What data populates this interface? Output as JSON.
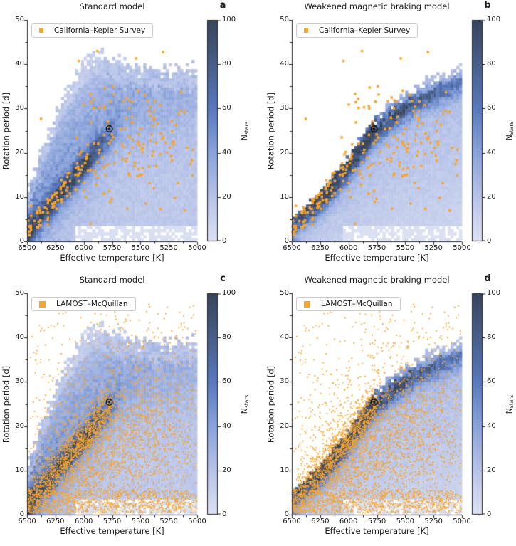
{
  "panels": [
    {
      "letter": "a",
      "title": "Standard model",
      "legend_label": "California–Kepler Survey",
      "dataset": "cks",
      "model": "std"
    },
    {
      "letter": "b",
      "title": "Weakened magnetic braking model",
      "legend_label": "California–Kepler Survey",
      "dataset": "cks",
      "model": "wmb"
    },
    {
      "letter": "c",
      "title": "Standard model",
      "legend_label": "LAMOST–McQuillan",
      "dataset": "lamost",
      "model": "std"
    },
    {
      "letter": "d",
      "title": "Weakened magnetic braking model",
      "legend_label": "LAMOST–McQuillan",
      "dataset": "lamost",
      "model": "wmb"
    }
  ],
  "axes": {
    "xlabel": "Effective temperature [K]",
    "ylabel": "Rotation period [d]",
    "xtick_labels": [
      "6500",
      "6250",
      "6000",
      "5750",
      "5500",
      "5250",
      "5000"
    ],
    "ytick_labels": [
      "0",
      "10",
      "20",
      "30",
      "40",
      "50"
    ],
    "x_range": [
      6500,
      5000
    ],
    "y_range": [
      0,
      50
    ]
  },
  "colorbar": {
    "label_main": "N",
    "label_sub": "stars",
    "tick_labels": [
      "0",
      "20",
      "40",
      "60",
      "80",
      "100"
    ],
    "range": [
      0,
      100
    ]
  },
  "sun_marker": {
    "teff": 5775,
    "period_d": 25.4
  },
  "colors": {
    "orange": "#f9a42a",
    "spine": "#262626",
    "text": "#1c1c1c",
    "legend_border": "#cccccc",
    "cmap_stops": [
      [
        0,
        "#dce2f3"
      ],
      [
        0.2,
        "#b7c3e8"
      ],
      [
        0.4,
        "#8aa3da"
      ],
      [
        0.6,
        "#5979bd"
      ],
      [
        0.8,
        "#495e88"
      ],
      [
        1,
        "#38455e"
      ]
    ]
  },
  "chart_data": [
    {
      "panel": "a",
      "type": "heatmap",
      "title": "Standard model",
      "x": {
        "label": "Effective temperature [K]",
        "range": [
          6500,
          5000
        ],
        "ticks": [
          6500,
          6250,
          6000,
          5750,
          5500,
          5250,
          5000
        ],
        "reversed": true
      },
      "y": {
        "label": "Rotation period [d]",
        "range": [
          0,
          50
        ],
        "ticks": [
          0,
          10,
          20,
          30,
          40,
          50
        ]
      },
      "colorbar": {
        "label": "Nstars",
        "range": [
          0,
          100
        ],
        "ticks": [
          0,
          20,
          40,
          60,
          80,
          100
        ]
      },
      "model": "std",
      "overlay": {
        "survey": "California–Kepler Survey",
        "marker": "orange square",
        "approx_points": 240
      },
      "sun": {
        "teff": 5775,
        "period_d": 25.4
      },
      "ridge_curve_T_P": [
        [
          6500,
          2
        ],
        [
          6375,
          7
        ],
        [
          6250,
          10
        ],
        [
          6125,
          13.5
        ],
        [
          6000,
          17
        ],
        [
          5875,
          20.5
        ],
        [
          5775,
          23
        ]
      ],
      "envelope_curve_T_P": [
        [
          6500,
          11
        ],
        [
          6380,
          20
        ],
        [
          6185,
          33
        ],
        [
          5960,
          42
        ],
        [
          5855,
          43
        ],
        [
          5750,
          41
        ],
        [
          5525,
          40
        ],
        [
          5300,
          39.5
        ],
        [
          5000,
          39.5
        ]
      ]
    },
    {
      "panel": "b",
      "type": "heatmap",
      "title": "Weakened magnetic braking model",
      "x": {
        "label": "Effective temperature [K]",
        "range": [
          6500,
          5000
        ],
        "ticks": [
          6500,
          6250,
          6000,
          5750,
          5500,
          5250,
          5000
        ],
        "reversed": true
      },
      "y": {
        "label": "Rotation period [d]",
        "range": [
          0,
          50
        ],
        "ticks": [
          0,
          10,
          20,
          30,
          40,
          50
        ]
      },
      "colorbar": {
        "label": "Nstars",
        "range": [
          0,
          100
        ],
        "ticks": [
          0,
          20,
          40,
          60,
          80,
          100
        ]
      },
      "model": "wmb",
      "overlay": {
        "survey": "California–Kepler Survey",
        "marker": "orange square",
        "approx_points": 240
      },
      "sun": {
        "teff": 5775,
        "period_d": 25.4
      },
      "ridge_curve_T_P": [
        [
          6500,
          4
        ],
        [
          6250,
          9.5
        ],
        [
          6000,
          17
        ],
        [
          5780,
          25
        ],
        [
          5600,
          29
        ],
        [
          5375,
          32.5
        ],
        [
          5000,
          36
        ]
      ],
      "envelope_curve_T_P": [
        [
          6500,
          5.5
        ],
        [
          6250,
          11
        ],
        [
          6000,
          18.5
        ],
        [
          5780,
          27
        ],
        [
          5600,
          31.5
        ],
        [
          5375,
          35.5
        ],
        [
          5000,
          40
        ]
      ]
    },
    {
      "panel": "c",
      "type": "heatmap",
      "title": "Standard model",
      "x": {
        "label": "Effective temperature [K]",
        "range": [
          6500,
          5000
        ],
        "ticks": [
          6500,
          6250,
          6000,
          5750,
          5500,
          5250,
          5000
        ],
        "reversed": true
      },
      "y": {
        "label": "Rotation period [d]",
        "range": [
          0,
          50
        ],
        "ticks": [
          0,
          10,
          20,
          30,
          40,
          50
        ]
      },
      "colorbar": {
        "label": "Nstars",
        "range": [
          0,
          100
        ],
        "ticks": [
          0,
          20,
          40,
          60,
          80,
          100
        ]
      },
      "model": "std",
      "overlay": {
        "survey": "LAMOST–McQuillan",
        "marker": "orange dot",
        "approx_points": 3800
      },
      "sun": {
        "teff": 5775,
        "period_d": 25.4
      },
      "ridge_curve_T_P": [
        [
          6500,
          2
        ],
        [
          6375,
          7
        ],
        [
          6250,
          10
        ],
        [
          6125,
          13.5
        ],
        [
          6000,
          17
        ],
        [
          5875,
          20.5
        ],
        [
          5775,
          23
        ]
      ],
      "envelope_curve_T_P": [
        [
          6500,
          11
        ],
        [
          6380,
          20
        ],
        [
          6185,
          33
        ],
        [
          5960,
          42
        ],
        [
          5855,
          43
        ],
        [
          5750,
          41
        ],
        [
          5525,
          40
        ],
        [
          5300,
          39.5
        ],
        [
          5000,
          39.5
        ]
      ]
    },
    {
      "panel": "d",
      "type": "heatmap",
      "title": "Weakened magnetic braking model",
      "x": {
        "label": "Effective temperature [K]",
        "range": [
          6500,
          5000
        ],
        "ticks": [
          6500,
          6250,
          6000,
          5750,
          5500,
          5250,
          5000
        ],
        "reversed": true
      },
      "y": {
        "label": "Rotation period [d]",
        "range": [
          0,
          50
        ],
        "ticks": [
          0,
          10,
          20,
          30,
          40,
          50
        ]
      },
      "colorbar": {
        "label": "Nstars",
        "range": [
          0,
          100
        ],
        "ticks": [
          0,
          20,
          40,
          60,
          80,
          100
        ]
      },
      "model": "wmb",
      "overlay": {
        "survey": "LAMOST–McQuillan",
        "marker": "orange dot",
        "approx_points": 3800
      },
      "sun": {
        "teff": 5775,
        "period_d": 25.4
      },
      "ridge_curve_T_P": [
        [
          6500,
          4
        ],
        [
          6250,
          9.5
        ],
        [
          6000,
          17
        ],
        [
          5780,
          25
        ],
        [
          5600,
          29
        ],
        [
          5375,
          32.5
        ],
        [
          5000,
          36
        ]
      ],
      "envelope_curve_T_P": [
        [
          6500,
          5.5
        ],
        [
          6250,
          11
        ],
        [
          6000,
          18.5
        ],
        [
          5780,
          27
        ],
        [
          5600,
          31.5
        ],
        [
          5375,
          35.5
        ],
        [
          5000,
          40
        ]
      ]
    }
  ],
  "render": {
    "grid": {
      "cols": 60,
      "rows": 72
    },
    "models": {
      "std": {
        "seed": 3,
        "base": 17,
        "cloudAmp": 26,
        "cloudFade": 0.45,
        "cloudWidth": 8.5,
        "cloudOffset": 5,
        "ridgeAmp": 58,
        "ridgeWidth": 2.1,
        "fadeStart": 0.38,
        "fadeEnd": 0.58,
        "cornerAmp": 30,
        "cornerT": 0.05,
        "cornerP": 5,
        "topZone": 5,
        "topTaper": 0.55,
        "gapP": 3.5,
        "gapT": 0.28,
        "gapFactor": 0.12,
        "env": [
          [
            0,
            11
          ],
          [
            0.08,
            20
          ],
          [
            0.21,
            33
          ],
          [
            0.36,
            42
          ],
          [
            0.43,
            43
          ],
          [
            0.5,
            41
          ],
          [
            0.65,
            40
          ],
          [
            0.8,
            39.5
          ],
          [
            1,
            39.5
          ]
        ]
      },
      "wmb": {
        "seed": 9,
        "base": 13,
        "baseSlope": 17,
        "tilt": 5,
        "ridgeAmp": 78,
        "ridgeWidth": 2.3,
        "fade": [
          [
            0,
            0.55
          ],
          [
            0.15,
            1
          ],
          [
            0.55,
            1
          ],
          [
            1,
            0.42
          ]
        ],
        "cornerAmp": 22,
        "cornerT": 0.05,
        "cornerP": 4,
        "envLift": [
          1.2,
          2.9
        ],
        "gapP": 3.5,
        "gapT": 0.3,
        "gapFactor": 0.12,
        "ridge": [
          [
            0,
            4
          ],
          [
            0.167,
            9.5
          ],
          [
            0.333,
            17
          ],
          [
            0.48,
            25
          ],
          [
            0.6,
            29
          ],
          [
            0.75,
            32.5
          ],
          [
            1,
            36
          ]
        ]
      }
    },
    "scatter": {
      "cks": {
        "seed": 1337,
        "n": 240,
        "size": 3.4,
        "components": [
          {
            "w": 0.36,
            "type": "ridge",
            "tMin": 0,
            "tMax": 0.36,
            "jitter": 1.7
          },
          {
            "w": 0.34,
            "type": "gauss",
            "tMean": 0.62,
            "tSd": 0.18,
            "pMean": 23,
            "pSd": 6.5
          },
          {
            "w": 0.22,
            "type": "uniform",
            "tMin": 0.28,
            "tMax": 1,
            "pMin": 7,
            "pMax": 36
          },
          {
            "w": 0.08,
            "type": "uniform",
            "tMin": 0,
            "tMax": 1,
            "pMin": 3,
            "pMax": 44
          }
        ]
      },
      "lamost": {
        "seed": 20240,
        "n": 3800,
        "size": 1.8,
        "components": [
          {
            "w": 0.26,
            "type": "ridge",
            "tMin": 0,
            "tMax": 0.5,
            "jitter": 2.6
          },
          {
            "w": 0.33,
            "type": "gauss",
            "tMean": 0.62,
            "tSd": 0.22,
            "pMean": 19,
            "pSd": 8
          },
          {
            "w": 0.18,
            "type": "uniform",
            "tMin": 0,
            "tMax": 1,
            "pMin": 0.4,
            "pMax": 5.5
          },
          {
            "w": 0.12,
            "type": "gauss",
            "tMean": 0.3,
            "tSd": 0.14,
            "pMean": 9,
            "pSd": 4.5
          },
          {
            "w": 0.11,
            "type": "uniform",
            "tMin": 0,
            "tMax": 1,
            "pMin": 0.5,
            "pMax": 47.5
          }
        ]
      }
    }
  }
}
